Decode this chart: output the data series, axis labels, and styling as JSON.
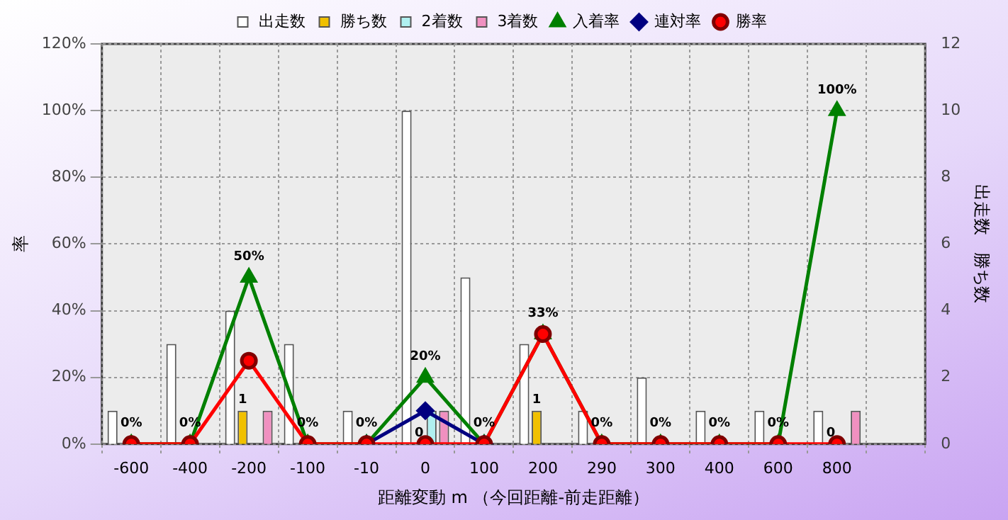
{
  "chart_data": {
    "type": "bar",
    "xlabel": "距離変動 m （今回距離-前走距離）",
    "ylabel": "率",
    "y2label": "出走数　勝ち数",
    "categories": [
      "-600",
      "-400",
      "-200",
      "-100",
      "-10",
      "0",
      "100",
      "200",
      "290",
      "300",
      "400",
      "600",
      "800",
      null
    ],
    "series": [
      {
        "name": "出走数",
        "axis": "y2",
        "color": "#ffffff",
        "values": [
          1,
          3,
          4,
          3,
          1,
          10,
          5,
          3,
          1,
          2,
          1,
          1,
          1,
          null
        ]
      },
      {
        "name": "勝ち数",
        "axis": "y2",
        "color": "#f0c000",
        "values": [
          0,
          0,
          1,
          0,
          0,
          0,
          0,
          1,
          0,
          0,
          0,
          0,
          0,
          null
        ],
        "value_labels": [
          null,
          null,
          "1",
          null,
          null,
          "0",
          null,
          "1",
          null,
          null,
          null,
          null,
          "0",
          null
        ]
      },
      {
        "name": "2着数",
        "axis": "y2",
        "color": "#b0f0f0",
        "values": [
          0,
          0,
          0,
          0,
          0,
          1,
          0,
          0,
          0,
          0,
          0,
          0,
          0,
          null
        ]
      },
      {
        "name": "3着数",
        "axis": "y2",
        "color": "#f090c0",
        "values": [
          0,
          0,
          1,
          0,
          0,
          1,
          0,
          0,
          0,
          0,
          0,
          0,
          1,
          null
        ]
      },
      {
        "name": "入着率",
        "type": "line",
        "marker": "triangle",
        "color": "#008000",
        "values": [
          0,
          0,
          50,
          0,
          0,
          20,
          0,
          33,
          0,
          0,
          0,
          0,
          100,
          null
        ],
        "value_labels": [
          "0%",
          "0%",
          "50%",
          "0%",
          "0%",
          "20%",
          "0%",
          "33%",
          "0%",
          "0%",
          "0%",
          "0%",
          "100%",
          null
        ]
      },
      {
        "name": "連対率",
        "type": "line",
        "marker": "diamond",
        "color": "#000080",
        "values": [
          null,
          null,
          null,
          null,
          0,
          10,
          0,
          null,
          null,
          null,
          null,
          null,
          null,
          null
        ]
      },
      {
        "name": "勝率",
        "type": "line",
        "marker": "circle",
        "color": "#ff0000",
        "values": [
          0,
          0,
          25,
          0,
          0,
          0,
          0,
          33,
          0,
          0,
          0,
          0,
          0,
          null
        ]
      }
    ],
    "ylim": [
      0,
      120
    ],
    "yticks": [
      {
        "value": 0,
        "label": "0%"
      },
      {
        "value": 20,
        "label": "20%"
      },
      {
        "value": 40,
        "label": "40%"
      },
      {
        "value": 60,
        "label": "60%"
      },
      {
        "value": 80,
        "label": "80%"
      },
      {
        "value": 100,
        "label": "100%"
      },
      {
        "value": 120,
        "label": "120%"
      }
    ],
    "y2lim": [
      0,
      12
    ],
    "y2ticks": [
      0,
      2,
      4,
      6,
      8,
      10,
      12
    ],
    "grid": true,
    "legend": "top"
  }
}
